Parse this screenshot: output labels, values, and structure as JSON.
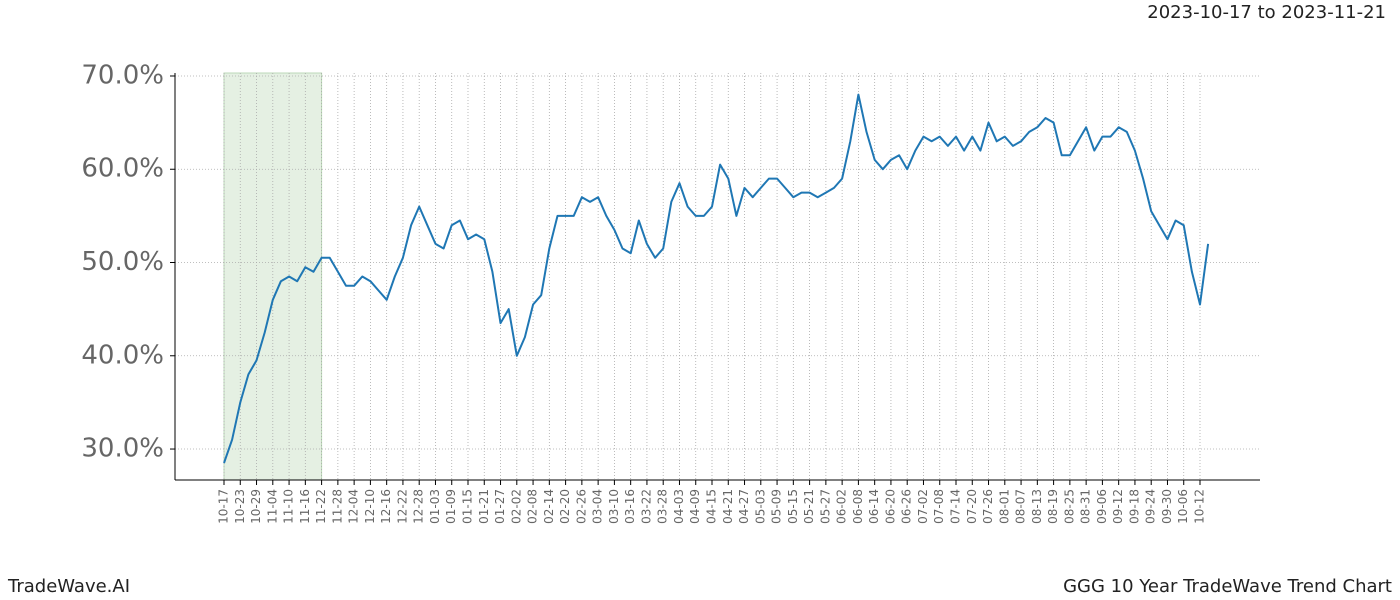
{
  "chart_data": {
    "type": "line",
    "date_range": "2023-10-17 to 2023-11-21",
    "brand": "TradeWave.AI",
    "title": "GGG 10 Year TradeWave Trend Chart",
    "categories": [
      "10-17",
      null,
      "10-23",
      null,
      "10-29",
      null,
      "11-04",
      null,
      "11-10",
      null,
      "11-16",
      null,
      "11-22",
      null,
      "11-28",
      null,
      "12-04",
      null,
      "12-10",
      null,
      "12-16",
      null,
      "12-22",
      null,
      "12-28",
      null,
      "01-03",
      null,
      "01-09",
      null,
      "01-15",
      null,
      "01-21",
      null,
      "01-27",
      null,
      "02-02",
      null,
      "02-08",
      null,
      "02-14",
      null,
      "02-20",
      null,
      "02-26",
      null,
      "03-04",
      null,
      "03-10",
      null,
      "03-16",
      null,
      "03-22",
      null,
      "03-28",
      null,
      "04-03",
      null,
      "04-09",
      null,
      "04-15",
      null,
      "04-21",
      null,
      "04-27",
      null,
      "05-03",
      null,
      "05-09",
      null,
      "05-15",
      null,
      "05-21",
      null,
      "05-27",
      null,
      "06-02",
      null,
      "06-08",
      null,
      "06-14",
      null,
      "06-20",
      null,
      "06-26",
      null,
      "07-02",
      null,
      "07-08",
      null,
      "07-14",
      null,
      "07-20",
      null,
      "07-26",
      null,
      "08-01",
      null,
      "08-07",
      null,
      "08-13",
      null,
      "08-19",
      null,
      "08-25",
      null,
      "08-31",
      null,
      "09-06",
      null,
      "09-12",
      null,
      "09-18",
      null,
      "09-24",
      null,
      "09-30",
      null,
      "10-06",
      null,
      "10-12",
      null
    ],
    "series": [
      {
        "color": "#1f77b4",
        "values": [
          28.5,
          31,
          35,
          38,
          39.5,
          42.5,
          46,
          48,
          48.5,
          48,
          49.5,
          49,
          50.5,
          50.5,
          49,
          47.5,
          47.5,
          48.5,
          48,
          47,
          46,
          48.5,
          50.5,
          54,
          56,
          54,
          52,
          51.5,
          54,
          54.5,
          52.5,
          53,
          52.5,
          49,
          43.5,
          45,
          40,
          42,
          45.5,
          46.5,
          51.5,
          55,
          55,
          55,
          57,
          56.5,
          57,
          55,
          53.5,
          51.5,
          51,
          54.5,
          52,
          50.5,
          51.5,
          56.5,
          58.5,
          56,
          55,
          55,
          56,
          60.5,
          59,
          55,
          58,
          57,
          58,
          59,
          59,
          58,
          57,
          57.5,
          57.5,
          57,
          57.5,
          58,
          59,
          63,
          68,
          64,
          61,
          60,
          61,
          61.5,
          60,
          62,
          63.5,
          63,
          63.5,
          62.5,
          63.5,
          62,
          63.5,
          62,
          65,
          63,
          63.5,
          62.5,
          63,
          64,
          64.5,
          65.5,
          65,
          61.5,
          61.5,
          63,
          64.5,
          62,
          63.5,
          63.5,
          64.5,
          64,
          62,
          59,
          55.5,
          54,
          52.5,
          54.5,
          54,
          49,
          45.5,
          52
        ]
      }
    ],
    "highlight": {
      "from": "10-17",
      "to": "11-22",
      "color": "#e5f0e3"
    },
    "ylim": [
      26.68,
      70.32
    ],
    "yticks": [
      {
        "value": 30,
        "label": "30.0%"
      },
      {
        "value": 40,
        "label": "40.0%"
      },
      {
        "value": 50,
        "label": "50.0%"
      },
      {
        "value": 60,
        "label": "60.0%"
      },
      {
        "value": 70,
        "label": "70.0%"
      }
    ],
    "grid": true
  }
}
